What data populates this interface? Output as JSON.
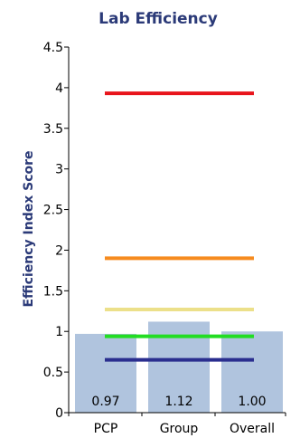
{
  "chart_data": {
    "type": "bar",
    "title": "Lab Efficiency",
    "ylabel": "Efficiency Index Score",
    "xlabel": "",
    "ylim": [
      0,
      4.5
    ],
    "yticks": [
      "0",
      "0.5",
      "1",
      "1.5",
      "2",
      "2.5",
      "3",
      "3.5",
      "4",
      "4.5"
    ],
    "categories": [
      "PCP",
      "Group",
      "Overall"
    ],
    "values": [
      0.97,
      1.12,
      1.0
    ],
    "data_labels": [
      "0.97",
      "1.12",
      "1.00"
    ],
    "bar_color": "#b0c4de",
    "reference_lines": [
      {
        "value": 3.93,
        "color": "#e8141b"
      },
      {
        "value": 1.9,
        "color": "#f68b1f"
      },
      {
        "value": 1.27,
        "color": "#ece08a"
      },
      {
        "value": 0.94,
        "color": "#22dd22"
      },
      {
        "value": 0.65,
        "color": "#2a2e8f"
      }
    ],
    "grid": false,
    "legend": "none"
  }
}
